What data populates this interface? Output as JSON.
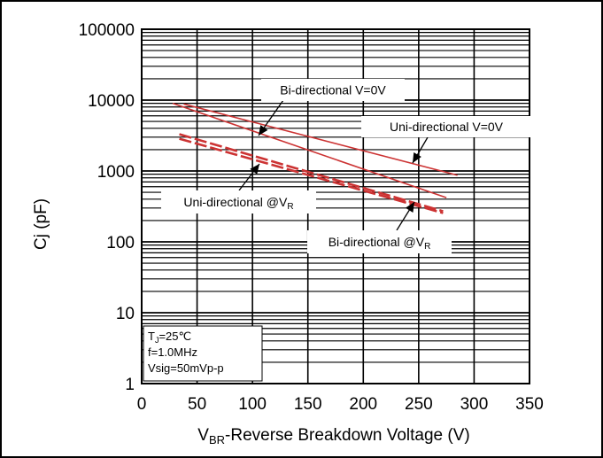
{
  "chart_data": {
    "type": "line",
    "title": "",
    "xlabel": {
      "main": "V",
      "sub": "BR",
      "rest": "-Reverse Breakdown Voltage (V)"
    },
    "ylabel": "Cj (pF)",
    "xlim": [
      0,
      350
    ],
    "ylim": [
      1,
      100000
    ],
    "y_scale": "log",
    "grid": true,
    "x_ticks": [
      "0",
      "50",
      "100",
      "150",
      "200",
      "250",
      "300",
      "350"
    ],
    "y_ticks": [
      "1",
      "10",
      "100",
      "1000",
      "10000",
      "100000"
    ],
    "series": [
      {
        "name": "Bi-directional V=0V",
        "color": "#cc3333",
        "dash": false,
        "x": [
          28,
          275
        ],
        "y": [
          9000,
          420
        ]
      },
      {
        "name": "Uni-directional V=0V",
        "color": "#cc3333",
        "dash": false,
        "x": [
          38,
          285
        ],
        "y": [
          8800,
          870
        ]
      },
      {
        "name": "Uni-directional @VR",
        "color": "#cc3333",
        "dash": true,
        "x": [
          34,
          272
        ],
        "y": [
          3300,
          270
        ]
      },
      {
        "name": "Bi-directional @VR",
        "color": "#cc3333",
        "dash": true,
        "x": [
          34,
          272
        ],
        "y": [
          2850,
          255
        ]
      }
    ],
    "annotations": [
      {
        "text": "Bi-directional V=0V",
        "sub": ""
      },
      {
        "text": "Uni-directional V=0V",
        "sub": ""
      },
      {
        "text": "Uni-directional @V",
        "sub": "R"
      },
      {
        "text": "Bi-directional @V",
        "sub": "R"
      }
    ],
    "conditions": {
      "tj_main": "T",
      "tj_sub": "J",
      "tj_rest": "=25℃",
      "freq": "f=1.0MHz",
      "vsig": "Vsig=50mVp-p"
    }
  }
}
